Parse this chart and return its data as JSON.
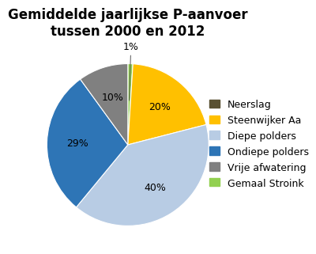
{
  "title": "Gemiddelde jaarlijkse P-aanvoer\ntussen 2000 en 2012",
  "slices": [
    {
      "label": "Neerslag",
      "value": 0,
      "color": "#595132",
      "pct": ""
    },
    {
      "label": "Steenwijker Aa",
      "value": 20,
      "color": "#ffc000",
      "pct": "20%"
    },
    {
      "label": "Diepe polders",
      "value": 40,
      "color": "#b8cce4",
      "pct": "40%"
    },
    {
      "label": "Ondiepe polders",
      "value": 29,
      "color": "#2e75b6",
      "pct": "29%"
    },
    {
      "label": "Vrije afwatering",
      "value": 10,
      "color": "#808080",
      "pct": "10%"
    },
    {
      "label": "Gemaal Stroink",
      "value": 1,
      "color": "#92d050",
      "pct": "1%"
    }
  ],
  "title_fontsize": 12,
  "label_fontsize": 9,
  "legend_fontsize": 9,
  "background_color": "#ffffff"
}
